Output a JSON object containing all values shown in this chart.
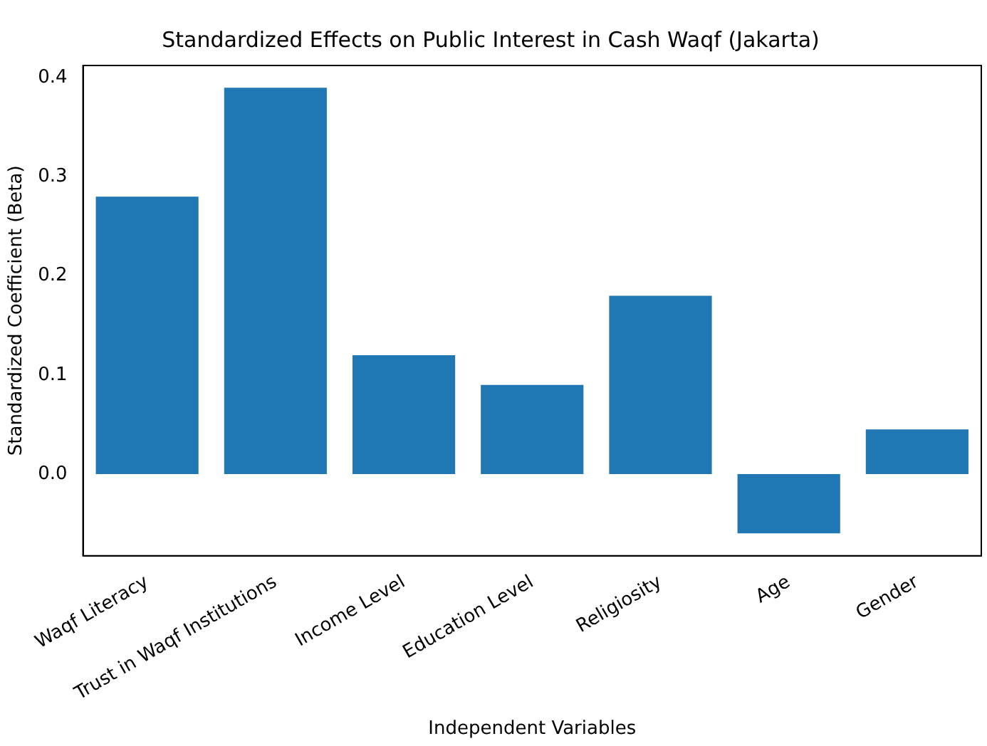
{
  "chart_data": {
    "type": "bar",
    "title": "Standardized Effects on Public Interest in Cash Waqf (Jakarta)",
    "xlabel": "Independent Variables",
    "ylabel": "Standardized Coefficient (Beta)",
    "categories": [
      "Waqf Literacy",
      "Trust in Waqf Institutions",
      "Income Level",
      "Education Level",
      "Religiosity",
      "Age",
      "Gender"
    ],
    "values": [
      0.28,
      0.39,
      0.12,
      0.09,
      0.18,
      -0.06,
      0.045
    ],
    "color": "#1f77b4",
    "ylim": [
      -0.0825,
      0.4125
    ],
    "yticks": [
      {
        "value": 0,
        "label": "0.0"
      },
      0.1,
      0.2,
      0.3,
      0.4
    ],
    "grid": false
  }
}
